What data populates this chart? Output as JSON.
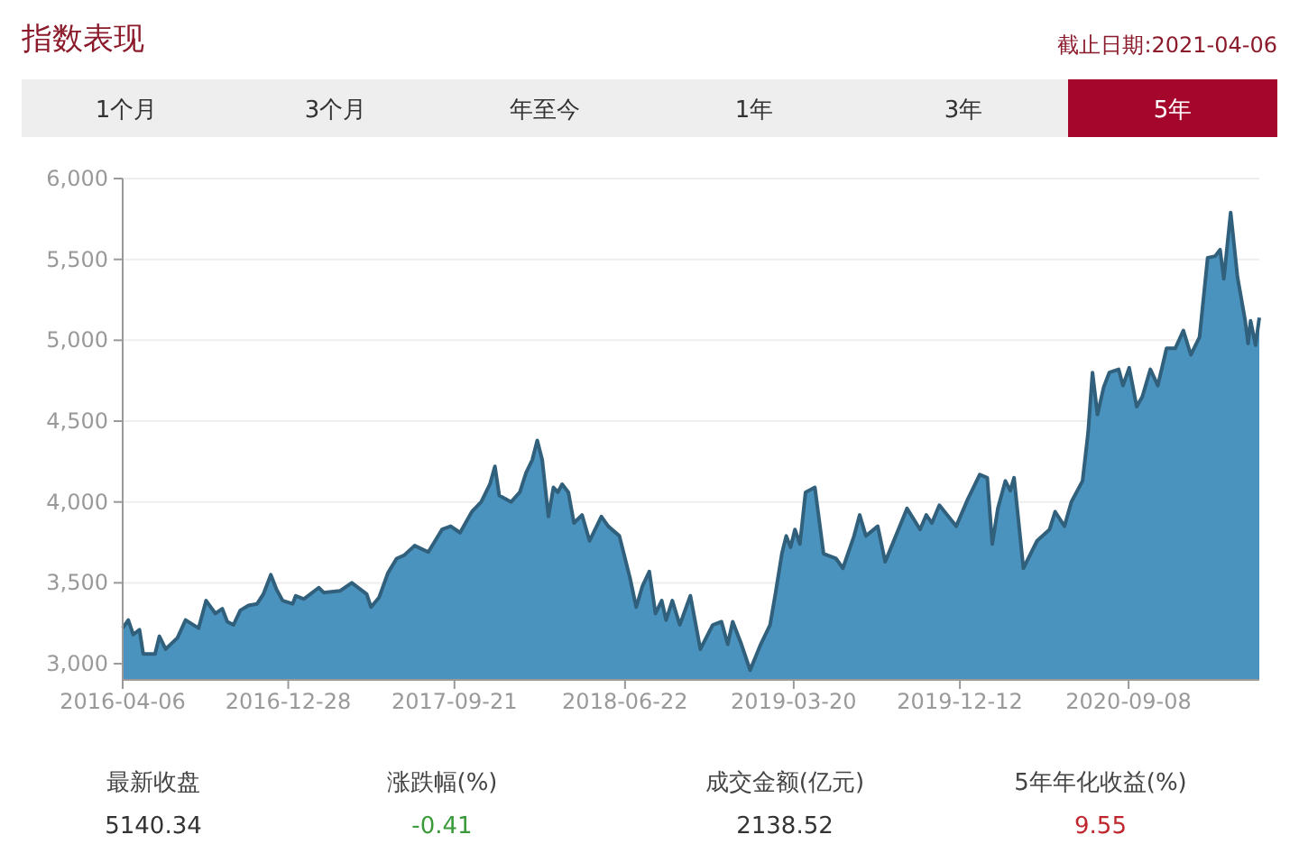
{
  "chart_data": {
    "type": "area",
    "title": "指数表现",
    "subtitle": "截止日期:2021-04-06",
    "annotations": [
      "1个月",
      "3个月",
      "年至今",
      "1年",
      "3年",
      "5年",
      "最新收盘",
      "5140.34",
      "涨跌幅(%)",
      "-0.41",
      "成交金额(亿元)",
      "2138.52",
      "5年年化收益(%)",
      "9.55"
    ],
    "x": [
      "2016-04-06",
      "2016-04-15",
      "2016-04-23",
      "2016-05-03",
      "2016-05-09",
      "2016-05-28",
      "2016-06-04",
      "2016-06-14",
      "2016-07-03",
      "2016-07-16",
      "2016-08-06",
      "2016-08-18",
      "2016-09-02",
      "2016-09-13",
      "2016-09-21",
      "2016-10-01",
      "2016-10-12",
      "2016-10-25",
      "2016-11-08",
      "2016-11-18",
      "2016-11-30",
      "2016-12-09",
      "2016-12-19",
      "2017-01-04",
      "2017-01-09",
      "2017-01-22",
      "2017-02-15",
      "2017-02-23",
      "2017-03-21",
      "2017-04-09",
      "2017-05-03",
      "2017-05-10",
      "2017-05-23",
      "2017-06-06",
      "2017-06-20",
      "2017-07-02",
      "2017-07-19",
      "2017-08-10",
      "2017-09-01",
      "2017-09-15",
      "2017-09-30",
      "2017-10-19",
      "2017-11-03",
      "2017-11-17",
      "2017-11-25",
      "2017-12-02",
      "2017-12-21",
      "2018-01-04",
      "2018-01-14",
      "2018-01-24",
      "2018-02-01",
      "2018-02-09",
      "2018-02-19",
      "2018-02-27",
      "2018-03-06",
      "2018-03-13",
      "2018-03-23",
      "2018-04-01",
      "2018-04-14",
      "2018-04-26",
      "2018-05-15",
      "2018-05-26",
      "2018-06-13",
      "2018-06-30",
      "2018-07-10",
      "2018-07-20",
      "2018-07-31",
      "2018-08-10",
      "2018-08-20",
      "2018-08-27",
      "2018-09-06",
      "2018-09-18",
      "2018-10-05",
      "2018-10-21",
      "2018-11-10",
      "2018-11-24",
      "2018-12-04",
      "2018-12-12",
      "2018-12-26",
      "2019-01-09",
      "2019-01-26",
      "2019-02-10",
      "2019-02-19",
      "2019-03-01",
      "2019-03-08",
      "2019-03-15",
      "2019-03-22",
      "2019-03-30",
      "2019-04-08",
      "2019-04-23",
      "2019-05-07",
      "2019-05-27",
      "2019-06-07",
      "2019-06-25",
      "2019-07-04",
      "2019-07-14",
      "2019-08-02",
      "2019-08-14",
      "2019-08-31",
      "2019-09-18",
      "2019-10-09",
      "2019-10-19",
      "2019-10-28",
      "2019-11-09",
      "2019-12-06",
      "2019-12-25",
      "2020-01-13",
      "2020-01-25",
      "2020-02-02",
      "2020-02-11",
      "2020-02-23",
      "2020-03-02",
      "2020-03-08",
      "2020-03-23",
      "2020-04-14",
      "2020-05-04",
      "2020-05-13",
      "2020-05-28",
      "2020-06-08",
      "2020-06-26",
      "2020-07-05",
      "2020-07-12",
      "2020-07-20",
      "2020-07-30",
      "2020-08-08",
      "2020-08-23",
      "2020-08-30",
      "2020-09-09",
      "2020-09-21",
      "2020-09-30",
      "2020-10-13",
      "2020-10-25",
      "2020-11-08",
      "2020-11-22",
      "2020-12-05",
      "2020-12-17",
      "2020-12-31",
      "2021-01-13",
      "2021-01-25",
      "2021-02-02",
      "2021-02-08",
      "2021-02-19",
      "2021-03-02",
      "2021-03-14",
      "2021-03-19",
      "2021-03-23",
      "2021-03-31",
      "2021-04-06"
    ],
    "values": [
      3220,
      3270,
      3180,
      3210,
      3060,
      3060,
      3170,
      3090,
      3160,
      3270,
      3220,
      3390,
      3310,
      3340,
      3260,
      3240,
      3330,
      3360,
      3370,
      3430,
      3550,
      3460,
      3390,
      3370,
      3420,
      3400,
      3470,
      3440,
      3450,
      3500,
      3430,
      3350,
      3410,
      3560,
      3650,
      3670,
      3730,
      3690,
      3830,
      3850,
      3810,
      3940,
      4000,
      4110,
      4220,
      4040,
      4000,
      4060,
      4180,
      4260,
      4380,
      4260,
      3910,
      4090,
      4060,
      4110,
      4060,
      3870,
      3920,
      3760,
      3910,
      3850,
      3790,
      3530,
      3350,
      3480,
      3570,
      3310,
      3390,
      3270,
      3390,
      3240,
      3420,
      3090,
      3240,
      3260,
      3120,
      3260,
      3120,
      2960,
      3120,
      3240,
      3440,
      3680,
      3790,
      3720,
      3830,
      3740,
      4060,
      4090,
      3680,
      3650,
      3590,
      3790,
      3920,
      3790,
      3850,
      3630,
      3790,
      3960,
      3830,
      3920,
      3870,
      3980,
      3850,
      4020,
      4170,
      4150,
      3740,
      3960,
      4130,
      4070,
      4150,
      3590,
      3760,
      3830,
      3940,
      3850,
      4000,
      4130,
      4430,
      4800,
      4540,
      4710,
      4800,
      4820,
      4720,
      4830,
      4590,
      4650,
      4820,
      4720,
      4950,
      4950,
      5060,
      4910,
      5020,
      5510,
      5520,
      5560,
      5380,
      5790,
      5390,
      5130,
      4980,
      5120,
      4970,
      5140
    ],
    "color": "#4b93bf",
    "xlim": [
      "2016-04-06",
      "2021-04-06"
    ],
    "xticks": [
      {
        "value": "2016-04-06",
        "label": "2016-04-06"
      },
      {
        "value": "2016-12-28",
        "label": "2016-12-28"
      },
      {
        "value": "2017-09-21",
        "label": "2017-09-21"
      },
      {
        "value": "2018-06-22",
        "label": "2018-06-22"
      },
      {
        "value": "2019-03-20",
        "label": "2019-03-20"
      },
      {
        "value": "2019-12-12",
        "label": "2019-12-12"
      },
      {
        "value": "2020-09-08",
        "label": "2020-09-08"
      }
    ],
    "ylim": [
      2900,
      6000
    ],
    "yticks": [
      {
        "value": 3000,
        "label": "3,000"
      },
      {
        "value": 3500,
        "label": "3,500"
      },
      {
        "value": 4000,
        "label": "4,000"
      },
      {
        "value": 4500,
        "label": "4,500"
      },
      {
        "value": 5000,
        "label": "5,000"
      },
      {
        "value": 5500,
        "label": "5,500"
      },
      {
        "value": 6000,
        "label": "6,000"
      }
    ],
    "grid": "y"
  }
}
